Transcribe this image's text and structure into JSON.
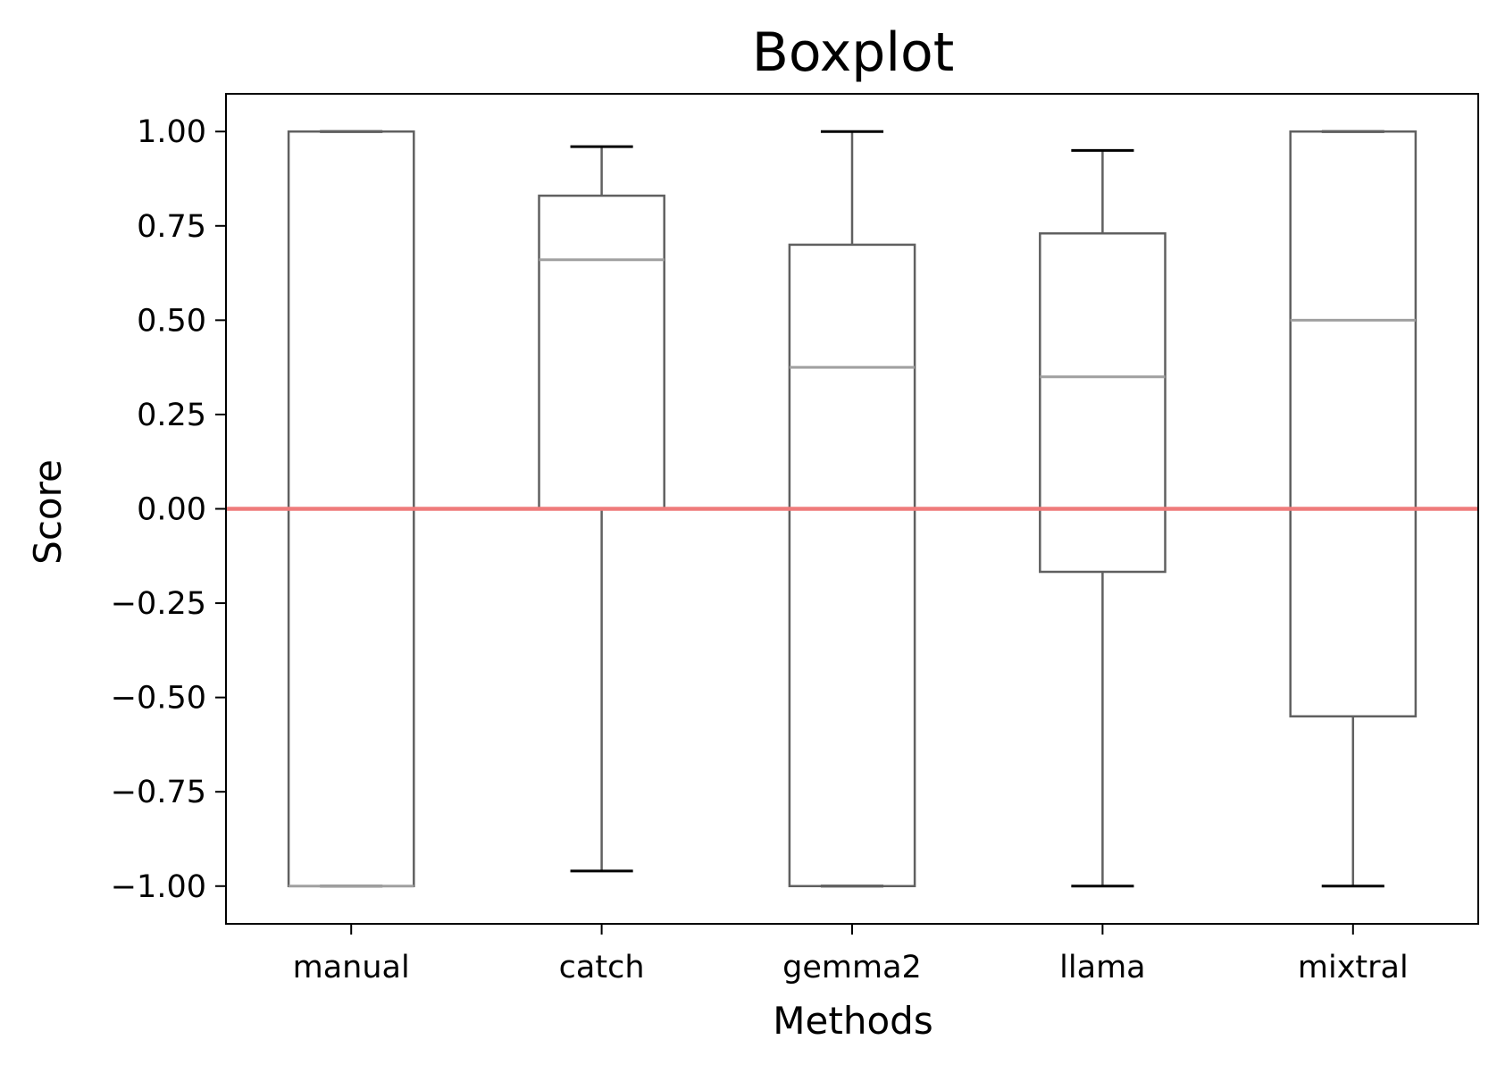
{
  "chart_data": {
    "type": "box",
    "title": "Boxplot",
    "xlabel": "Methods",
    "ylabel": "Score",
    "categories": [
      "manual",
      "catch",
      "gemma2",
      "llama",
      "mixtral"
    ],
    "boxes": [
      {
        "category": "manual",
        "whisker_low": -1.0,
        "q1": -1.0,
        "median": -1.0,
        "q3": 1.0,
        "whisker_high": 1.0
      },
      {
        "category": "catch",
        "whisker_low": -0.96,
        "q1": 0.0,
        "median": 0.66,
        "q3": 0.83,
        "whisker_high": 0.96
      },
      {
        "category": "gemma2",
        "whisker_low": -1.0,
        "q1": -1.0,
        "median": 0.375,
        "q3": 0.7,
        "whisker_high": 1.0
      },
      {
        "category": "llama",
        "whisker_low": -1.0,
        "q1": -0.167,
        "median": 0.35,
        "q3": 0.73,
        "whisker_high": 0.95
      },
      {
        "category": "mixtral",
        "whisker_low": -1.0,
        "q1": -0.55,
        "median": 0.5,
        "q3": 1.0,
        "whisker_high": 1.0
      }
    ],
    "reference_line": {
      "y": 0.0,
      "color": "#ef7b7b"
    },
    "yticks": [
      1.0,
      0.75,
      0.5,
      0.25,
      0.0,
      -0.25,
      -0.5,
      -0.75,
      -1.0
    ],
    "ytick_labels": [
      "1.00",
      "0.75",
      "0.50",
      "0.25",
      "0.00",
      "−0.25",
      "−0.50",
      "−0.75",
      "−1.00"
    ],
    "ylim": [
      -1.1,
      1.1
    ],
    "grid": false,
    "colors": {
      "box": "#606060",
      "median": "#a0a0a0",
      "whisker_cap": "#000000",
      "axes": "#000000"
    }
  }
}
